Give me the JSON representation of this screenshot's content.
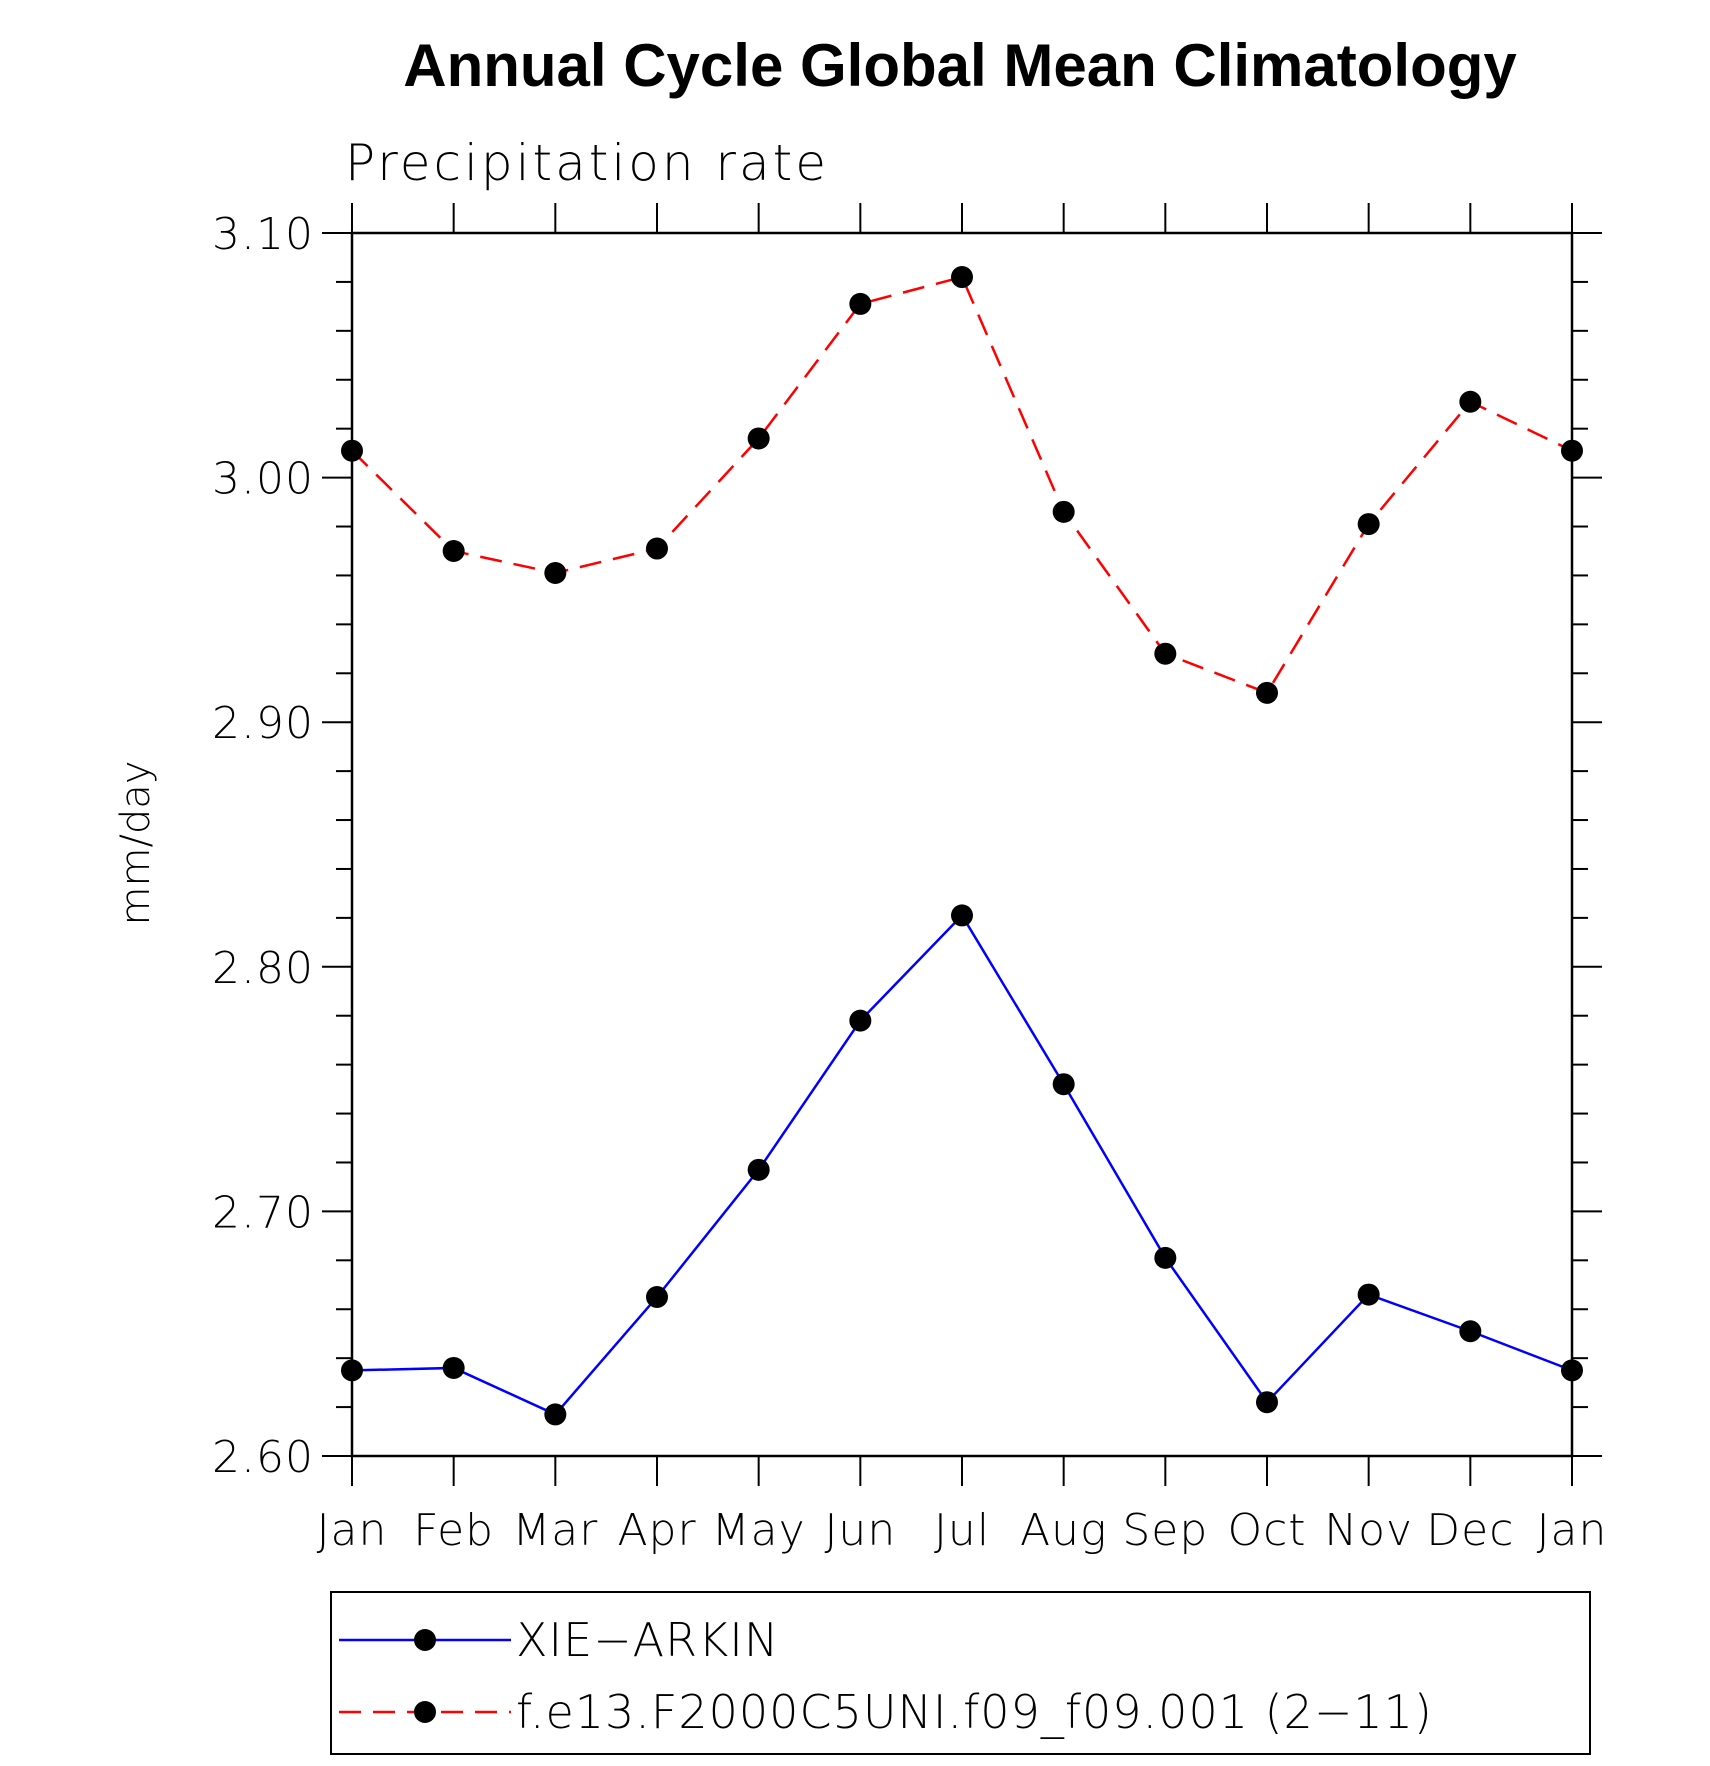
{
  "chart_data": {
    "type": "line",
    "title": "Annual Cycle Global Mean Climatology",
    "subtitle": "Precipitation rate",
    "xlabel": "",
    "ylabel": "mm/day",
    "categories": [
      "Jan",
      "Feb",
      "Mar",
      "Apr",
      "May",
      "Jun",
      "Jul",
      "Aug",
      "Sep",
      "Oct",
      "Nov",
      "Dec",
      "Jan"
    ],
    "ylim": [
      2.6,
      3.1
    ],
    "yticks": [
      "2.60",
      "2.70",
      "2.80",
      "2.90",
      "3.00",
      "3.10"
    ],
    "grid": false,
    "legend_position": "bottom",
    "series": [
      {
        "name": "XIE−ARKIN",
        "color": "#0000ff",
        "line_style": "solid",
        "marker": "filled-circle",
        "values": [
          2.635,
          2.636,
          2.617,
          2.665,
          2.717,
          2.778,
          2.821,
          2.752,
          2.681,
          2.622,
          2.666,
          2.651,
          2.635
        ]
      },
      {
        "name": "f.e13.F2000C5UNI.f09_f09.001 (2−11)",
        "color": "#ff0000",
        "line_style": "dashed",
        "marker": "filled-circle",
        "values": [
          3.011,
          2.97,
          2.961,
          2.971,
          3.016,
          3.071,
          3.082,
          2.986,
          2.928,
          2.912,
          2.981,
          3.031,
          3.011
        ]
      }
    ]
  }
}
